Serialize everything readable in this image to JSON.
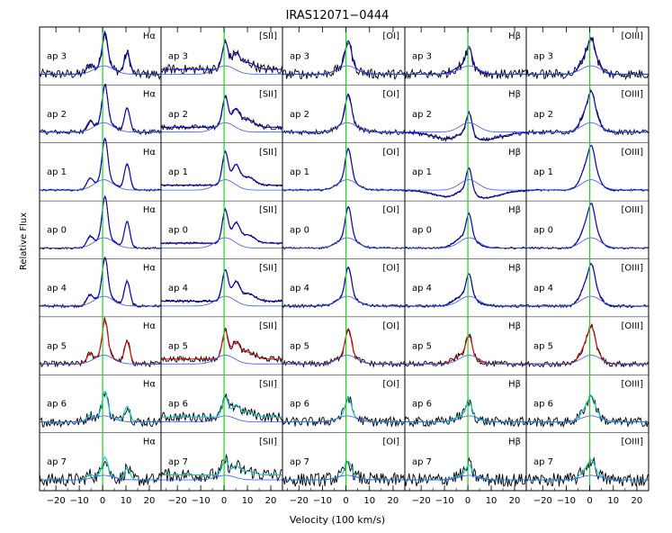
{
  "figure": {
    "title": "IRAS12071−0444"
  },
  "chart_data": {
    "type": "line",
    "title": "IRAS12071−0444",
    "xlabel": "Velocity (100 km/s)",
    "ylabel": "Relative Flux",
    "xlim": [
      -27,
      25
    ],
    "x_ticks": [
      -20,
      -10,
      0,
      10,
      20
    ],
    "x_tick_labels": [
      "−20",
      "−10",
      "0",
      "10",
      "20"
    ],
    "grid": false,
    "columns": [
      {
        "line": "Hα"
      },
      {
        "line": "[SII]"
      },
      {
        "line": "[OI]"
      },
      {
        "line": "Hβ"
      },
      {
        "line": "[OIII]"
      }
    ],
    "rows": [
      {
        "aperture": "ap 3"
      },
      {
        "aperture": "ap 2"
      },
      {
        "aperture": "ap 1"
      },
      {
        "aperture": "ap 0"
      },
      {
        "aperture": "ap 4"
      },
      {
        "aperture": "ap 5"
      },
      {
        "aperture": "ap 6"
      },
      {
        "aperture": "ap 7"
      }
    ],
    "reference_line": {
      "x": 0,
      "color": "#22cc22"
    },
    "component_colors": {
      "data": "#000000",
      "total_fit": "#0000cc",
      "component": "#3355ff",
      "red_component": "#dd0000",
      "cyan_component": "#00cccc",
      "green_component": "#22aa22"
    }
  }
}
